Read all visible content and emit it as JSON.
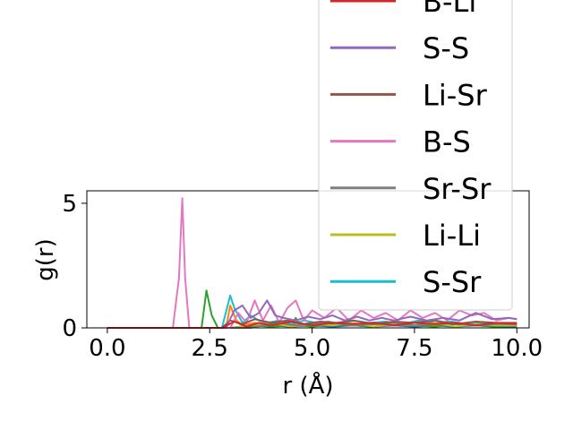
{
  "chart_data": {
    "type": "line",
    "xlabel": "r (Å)",
    "ylabel": "g(r)",
    "xlim": [
      -0.5,
      10.3
    ],
    "ylim": [
      0,
      5.5
    ],
    "xticks": [
      0.0,
      2.5,
      5.0,
      7.5,
      10.0
    ],
    "xtick_labels": [
      "0.0",
      "2.5",
      "5.0",
      "7.5",
      "10.0"
    ],
    "yticks": [
      0,
      5
    ],
    "ytick_labels": [
      "0",
      "5"
    ],
    "grid": false,
    "legend_position": "upper-right",
    "series": [
      {
        "name": "B-Li",
        "color": "#d62728",
        "x": [
          0,
          1.0,
          2.0,
          2.8,
          3.1,
          3.4,
          3.7,
          4.0,
          4.5,
          5.0,
          5.5,
          6.0,
          6.5,
          7.0,
          7.5,
          8.0,
          8.5,
          9.0,
          9.5,
          10.0
        ],
        "y": [
          0,
          0,
          0,
          0,
          0.25,
          0.05,
          0.2,
          0.1,
          0.25,
          0.1,
          0.2,
          0.15,
          0.2,
          0.1,
          0.2,
          0.15,
          0.2,
          0.1,
          0.2,
          0.15
        ]
      },
      {
        "name": "S-S",
        "color": "#9467bd",
        "x": [
          0,
          1.0,
          2.0,
          2.9,
          3.1,
          3.3,
          3.5,
          3.7,
          3.9,
          4.1,
          4.3,
          4.6,
          4.9,
          5.2,
          5.5,
          5.8,
          6.1,
          6.4,
          6.7,
          7.0,
          7.4,
          7.8,
          8.2,
          8.6,
          9.0,
          9.4,
          9.8,
          10.0
        ],
        "y": [
          0,
          0,
          0,
          0,
          0.7,
          0.9,
          0.4,
          0.6,
          1.1,
          0.5,
          0.4,
          0.3,
          0.45,
          0.35,
          0.5,
          0.3,
          0.45,
          0.3,
          0.4,
          0.3,
          0.45,
          0.3,
          0.4,
          0.3,
          0.6,
          0.35,
          0.4,
          0.35
        ]
      },
      {
        "name": "Li-Sr",
        "color": "#8c564b",
        "x": [
          0,
          1.0,
          2.0,
          2.8,
          3.0,
          3.3,
          3.6,
          4.0,
          4.4,
          4.8,
          5.2,
          5.6,
          6.0,
          6.5,
          7.0,
          7.5,
          8.0,
          8.5,
          9.0,
          9.5,
          10.0
        ],
        "y": [
          0,
          0,
          0,
          0,
          0.3,
          0.15,
          0.35,
          0.2,
          0.3,
          0.15,
          0.25,
          0.2,
          0.3,
          0.15,
          0.25,
          0.2,
          0.3,
          0.15,
          0.25,
          0.2,
          0.2
        ]
      },
      {
        "name": "B-S",
        "color": "#e377c2",
        "x": [
          0,
          1.0,
          1.6,
          1.75,
          1.83,
          1.9,
          2.0,
          2.5,
          3.0,
          3.2,
          3.4,
          3.6,
          3.8,
          4.0,
          4.2,
          4.4,
          4.6,
          4.8,
          5.0,
          5.3,
          5.6,
          5.9,
          6.2,
          6.5,
          6.8,
          7.1,
          7.4,
          7.7,
          8.0,
          8.3,
          8.6,
          8.9,
          9.2,
          9.5,
          9.8,
          10.0
        ],
        "y": [
          0,
          0,
          0,
          2.0,
          5.2,
          2.0,
          0,
          0,
          0,
          0.6,
          0.2,
          1.1,
          0.3,
          0.9,
          0.2,
          0.8,
          1.1,
          0.3,
          0.7,
          0.4,
          0.8,
          0.3,
          0.7,
          0.4,
          0.6,
          0.3,
          0.7,
          0.4,
          0.6,
          0.3,
          0.7,
          0.5,
          0.6,
          0.3,
          0.4,
          0.35
        ]
      },
      {
        "name": "Sr-Sr",
        "color": "#7f7f7f",
        "x": [
          0,
          1.0,
          2.0,
          3.0,
          3.5,
          3.8,
          4.2,
          4.6,
          5.0,
          5.5,
          6.0,
          6.5,
          7.0,
          7.5,
          8.0,
          8.5,
          9.0,
          9.5,
          10.0
        ],
        "y": [
          0,
          0,
          0,
          0,
          0,
          0.1,
          0.2,
          0.1,
          0.15,
          0.2,
          0.1,
          0.15,
          0.2,
          0.1,
          0.15,
          0.2,
          0.1,
          0.15,
          0.15
        ]
      },
      {
        "name": "Li-Li",
        "color": "#bcbd22",
        "x": [
          0,
          1.0,
          2.0,
          3.0,
          3.5,
          4.0,
          4.5,
          5.0,
          5.5,
          6.0,
          6.5,
          7.0,
          7.5,
          8.0,
          8.5,
          9.0,
          9.5,
          10.0
        ],
        "y": [
          0,
          0,
          0,
          0,
          0.1,
          0.2,
          0.05,
          0.15,
          0.1,
          0.2,
          0.05,
          0.15,
          0.1,
          0.2,
          0.05,
          0.15,
          0.1,
          0.1
        ]
      },
      {
        "name": "S-Sr",
        "color": "#17becf",
        "x": [
          0,
          1.0,
          2.0,
          2.8,
          3.0,
          3.1,
          3.3,
          3.5,
          3.7,
          3.9,
          4.2,
          4.5,
          4.8,
          5.1,
          5.4,
          5.7,
          6.0,
          6.4,
          6.8,
          7.2,
          7.6,
          8.0,
          8.4,
          8.8,
          9.2,
          9.6,
          10.0
        ],
        "y": [
          0,
          0,
          0,
          0,
          1.3,
          0.8,
          0.2,
          0.5,
          0.3,
          0.2,
          0.3,
          0.15,
          0.3,
          0.2,
          0.25,
          0.15,
          0.3,
          0.2,
          0.25,
          0.15,
          0.3,
          0.2,
          0.25,
          0.15,
          0.2,
          0.15,
          0.15
        ]
      },
      {
        "name": "",
        "color": "#2ca02c",
        "x": [
          0,
          1.0,
          2.0,
          2.3,
          2.42,
          2.55,
          2.7,
          3.0,
          3.5,
          4.0,
          4.5,
          4.6,
          4.7,
          5.0,
          5.5,
          6.0,
          6.5,
          7.0,
          7.5,
          8.0,
          8.5,
          9.0,
          9.5,
          10.0
        ],
        "y": [
          0,
          0,
          0,
          0,
          1.5,
          0.5,
          0,
          0,
          0.1,
          0.05,
          0.1,
          0.4,
          0.1,
          0.05,
          0.15,
          0.1,
          0.05,
          0.15,
          0.1,
          0.05,
          0.15,
          0.1,
          0.05,
          0.1
        ]
      },
      {
        "name": "",
        "color": "#ff7f0e",
        "x": [
          0,
          1.0,
          2.0,
          2.9,
          3.0,
          3.15,
          3.3,
          3.6,
          4.0,
          4.5,
          5.0,
          5.5,
          6.0,
          6.5,
          7.0,
          7.5,
          8.0,
          8.5,
          9.0,
          9.5,
          10.0
        ],
        "y": [
          0,
          0,
          0,
          0,
          0.9,
          0.3,
          0.1,
          0.2,
          0.1,
          0.15,
          0.1,
          0.2,
          0.1,
          0.15,
          0.1,
          0.2,
          0.1,
          0.15,
          0.1,
          0.2,
          0.1
        ]
      },
      {
        "name": "",
        "color": "#1f77b4",
        "x": [
          0,
          1.0,
          2.0,
          3.0,
          3.5,
          4.0,
          4.5,
          5.0,
          5.5,
          6.0,
          6.5,
          7.0,
          7.5,
          8.0,
          8.5,
          9.0,
          9.5,
          10.0
        ],
        "y": [
          0,
          0,
          0,
          0,
          0.05,
          0.1,
          0.05,
          0.1,
          0.05,
          0.1,
          0.05,
          0.1,
          0.05,
          0.1,
          0.05,
          0.1,
          0.05,
          0.05
        ]
      }
    ]
  }
}
